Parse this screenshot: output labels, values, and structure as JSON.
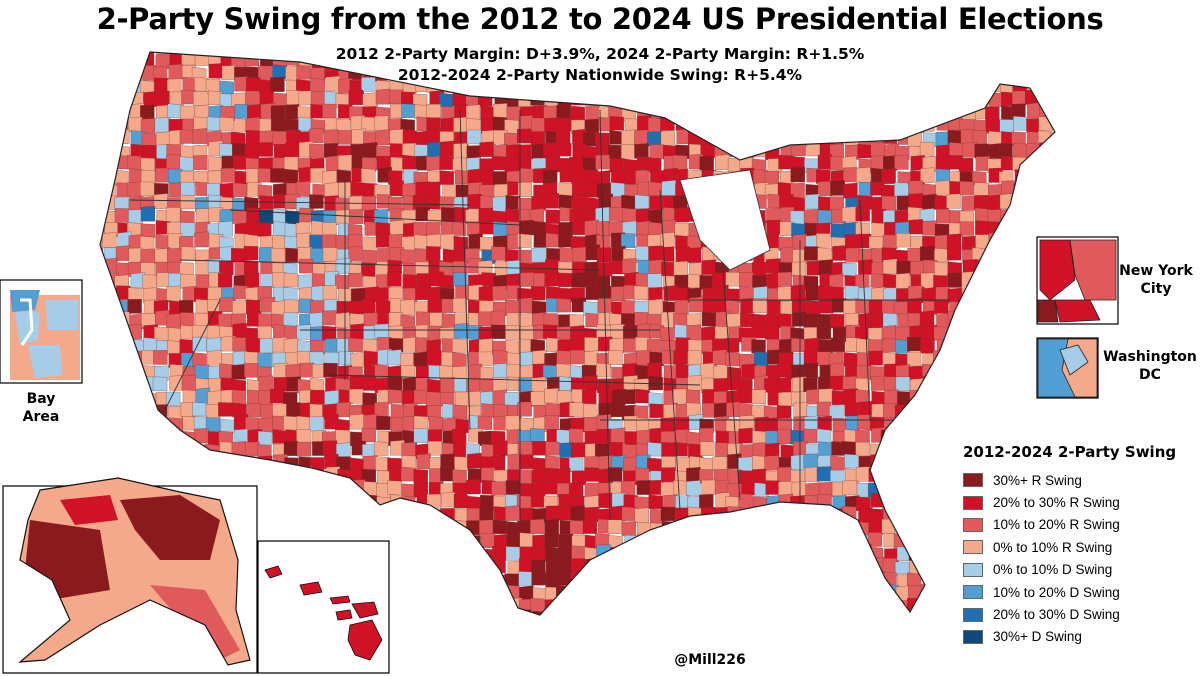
{
  "title": "2-Party Swing from the 2012 to 2024 US Presidential Elections",
  "subtitle_line1": "2012 2-Party Margin: D+3.9%, 2024 2-Party Margin: R+1.5%",
  "subtitle_line2": "2012-2024 2-Party Nationwide Swing: R+5.4%",
  "insets": {
    "bay_area": "Bay\nArea",
    "new_york_city": "New York\nCity",
    "washington_dc": "Washington\nDC"
  },
  "legend": {
    "title": "2012-2024 2-Party Swing",
    "items": [
      {
        "label": "30%+ R Swing",
        "color": "#8b1a1e"
      },
      {
        "label": "20% to 30% R Swing",
        "color": "#cf1225"
      },
      {
        "label": "10% to 20% R Swing",
        "color": "#e05a5c"
      },
      {
        "label": "0% to 10% R Swing",
        "color": "#f3a98a"
      },
      {
        "label": "0% to 10% D Swing",
        "color": "#a6cde8"
      },
      {
        "label": "10% to 20% D Swing",
        "color": "#519fd3"
      },
      {
        "label": "20% to 30% D Swing",
        "color": "#1f6fb2"
      },
      {
        "label": "30%+ D Swing",
        "color": "#0e4778"
      }
    ]
  },
  "credit": "@Mill226"
}
